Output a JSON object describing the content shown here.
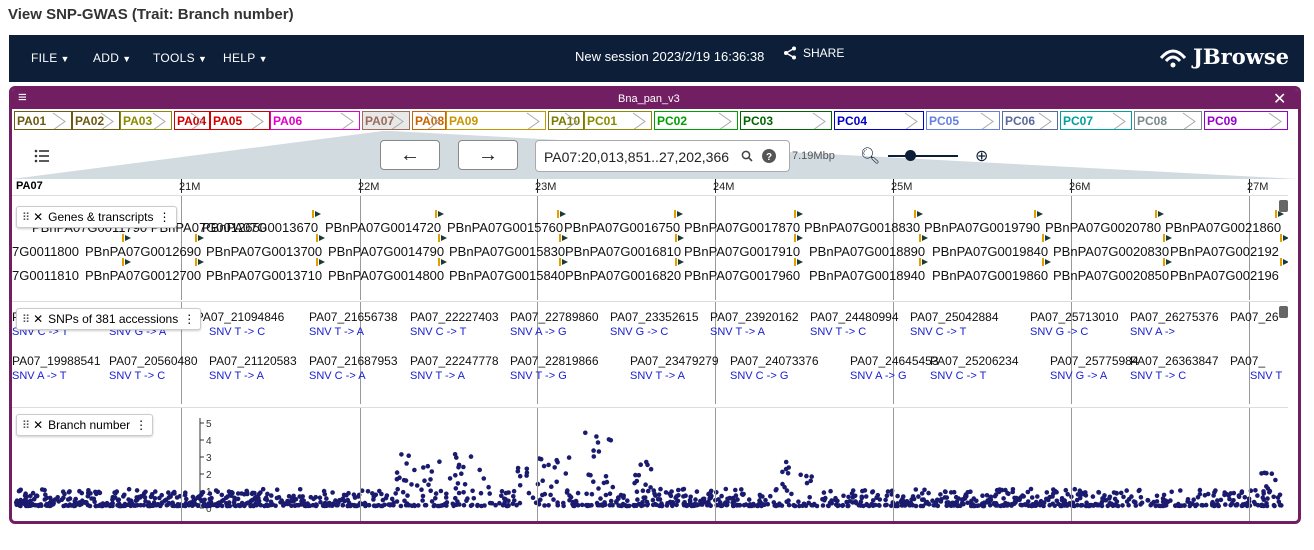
{
  "page_title": "View SNP-GWAS (Trait: Branch number)",
  "appbar": {
    "menus": [
      {
        "label": "FILE"
      },
      {
        "label": "ADD"
      },
      {
        "label": "TOOLS"
      },
      {
        "label": "HELP"
      }
    ],
    "session_title": "New session 2023/2/19 16:36:38",
    "share_label": "SHARE",
    "logo_text": "JBrowse"
  },
  "view": {
    "assembly_name": "Bna_pan_v3",
    "location": "PA07:20,013,851..27,202,366",
    "bp_per_view": "7.19Mbp",
    "chromosome": "PA07",
    "ruler_ticks": [
      "21M",
      "22M",
      "23M",
      "24M",
      "25M",
      "26M",
      "27M"
    ],
    "refs": [
      {
        "name": "PA01",
        "color": "#6b5a12"
      },
      {
        "name": "PA02",
        "color": "#6b5a12"
      },
      {
        "name": "PA03",
        "color": "#8a8a00"
      },
      {
        "name": "PA04",
        "color": "#d00000"
      },
      {
        "name": "PA05",
        "color": "#d00000"
      },
      {
        "name": "PA06",
        "color": "#e000c8"
      },
      {
        "name": "PA07",
        "color": "#9c6b5a"
      },
      {
        "name": "PA08",
        "color": "#c86400"
      },
      {
        "name": "PA09",
        "color": "#c89600"
      },
      {
        "name": "PA10",
        "color": "#7a7a00"
      },
      {
        "name": "PC01",
        "color": "#8a8a00"
      },
      {
        "name": "PC02",
        "color": "#00a000"
      },
      {
        "name": "PC03",
        "color": "#006400"
      },
      {
        "name": "PC04",
        "color": "#0000c8"
      },
      {
        "name": "PC05",
        "color": "#6480e0"
      },
      {
        "name": "PC06",
        "color": "#5a6a9c"
      },
      {
        "name": "PC07",
        "color": "#00a0a0"
      },
      {
        "name": "PC08",
        "color": "#7a8a8a"
      },
      {
        "name": "PC09",
        "color": "#9600c8"
      }
    ]
  },
  "tracks": {
    "genes": {
      "label": "Genes & transcripts",
      "rows": [
        [
          "PBnPA07G0011790 PBnPA07G0012650",
          "PBnPA07G0013670",
          "PBnPA07G0014720",
          "PBnPA07G0015760",
          "PBnPA07G0016750",
          "PBnPA07G0017870",
          "PBnPA07G0018830",
          "PBnPA07G0019790",
          "PBnPA07G0020780",
          "PBnPA07G0021860"
        ],
        [
          "7G0011800",
          "PBnPA07G0012690",
          "PBnPA07G0013700",
          "PBnPA07G0014790",
          "PBnPA07G0015830",
          "PBnPA07G0016810",
          "PBnPA07G0017910",
          "PBnPA07G0018890",
          "PBnPA07G0019840",
          "PBnPA07G0020830",
          "PBnPA07G002192"
        ],
        [
          "7G0011810",
          "PBnPA07G0012700",
          "PBnPA07G0013710",
          "PBnPA07G0014800",
          "PBnPA07G0015840",
          "PBnPA07G0016820",
          "PBnPA07G0017960",
          "PBnPA07G0018940",
          "PBnPA07G0019860",
          "PBnPA07G0020850",
          "PBnPA07G002196"
        ]
      ]
    },
    "snps": {
      "label": "SNPs of 381 accessions",
      "row1_ids": [
        "PA07_19970470 PA07_20532078 PA07_21094846",
        "PA07_21656738",
        "PA07_22227403",
        "PA07_22789860",
        "PA07_23352615",
        "PA07_23920162",
        "PA07_24480994",
        "PA07_25042884",
        "PA07_25713010",
        "PA07_26275376",
        "PA07_26"
      ],
      "row1_types": [
        "SNV C -> T",
        "SNV G -> A",
        "SNV T -> C",
        "SNV T -> A",
        "SNV C -> T",
        "SNV A -> G",
        "SNV G -> C",
        "SNV T -> A",
        "SNV T -> C",
        "SNV C -> T",
        "SNV G -> C",
        "SNV A ->"
      ],
      "row2_ids": [
        "PA07_19988541",
        "PA07_20560480",
        "PA07_21120583",
        "PA07_21687953",
        "PA07_22247778",
        "PA07_22819866",
        "PA07_23479279",
        "PA07_24073376",
        "PA07_24645453",
        "PA07_25206234",
        "PA07_25775984",
        "PA07_26363847",
        "PA07_"
      ],
      "row2_types": [
        "SNV A -> T",
        "SNV T -> C",
        "SNV T -> A",
        "SNV C -> A",
        "SNV T -> A",
        "SNV T -> G",
        "SNV T -> A",
        "SNV C -> G",
        "SNV A -> G",
        "SNV C -> T",
        "SNV G -> A",
        "SNV T -> C",
        "SNV T"
      ]
    },
    "gwas": {
      "label": "Branch number",
      "axis_ticks": [
        "5",
        "4",
        "3",
        "2",
        "1",
        "0"
      ]
    }
  },
  "colors": {
    "appbar": "#0c1e38",
    "view_border": "#721e63",
    "gwas_points": "#1a1a6e",
    "snv_text": "#1a20d0"
  }
}
